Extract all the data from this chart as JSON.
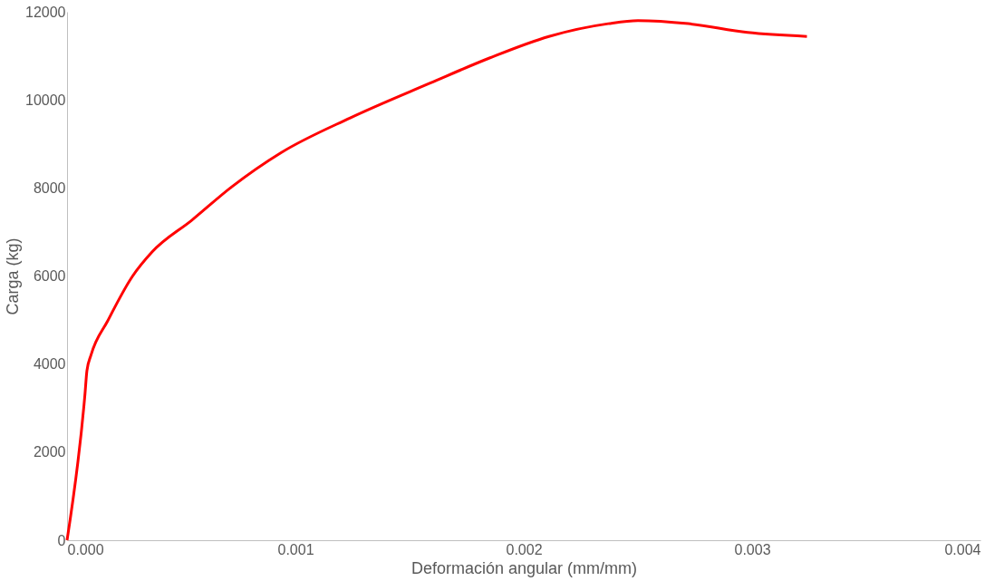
{
  "chart_data": {
    "type": "line",
    "xlabel": "Deformación angular (mm/mm)",
    "ylabel": "Carga (kg)",
    "x": [
      0,
      7.4e-05,
      7.8e-05,
      8.7e-05,
      0.000104,
      0.000178,
      0.000286,
      0.000373,
      0.000547,
      0.00072,
      0.000937,
      0.00124,
      0.00159,
      0.00185,
      0.00211,
      0.00237,
      0.0025,
      0.00272,
      0.00298,
      0.00324
    ],
    "series": [
      {
        "color": "#ff0000",
        "values": [
          0,
          3060,
          3290,
          3850,
          4190,
          4980,
          5990,
          6550,
          7270,
          8020,
          8800,
          9590,
          10380,
          10950,
          11440,
          11730,
          11800,
          11730,
          11530,
          11440
        ]
      }
    ],
    "xlim": [
      0,
      0.004
    ],
    "ylim": [
      0,
      12000
    ],
    "xticks": [
      {
        "value": 0,
        "label": "0.000"
      },
      {
        "value": 0.001,
        "label": "0.001"
      },
      {
        "value": 0.002,
        "label": "0.002"
      },
      {
        "value": 0.003,
        "label": "0.003"
      },
      {
        "value": 0.004,
        "label": "0.004"
      }
    ],
    "yticks": [
      0,
      2000,
      4000,
      6000,
      8000,
      10000,
      12000
    ],
    "grid": false,
    "marker": "none",
    "line_style": "solid"
  }
}
